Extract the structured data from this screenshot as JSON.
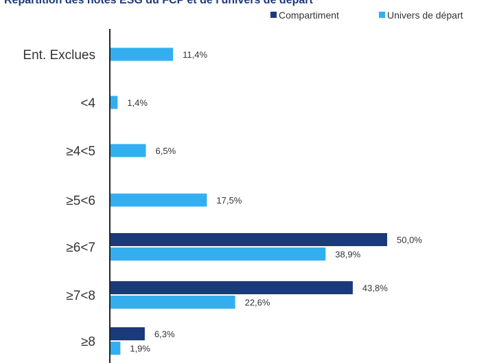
{
  "colors": {
    "compartiment": "#1b3a7a",
    "univers": "#33aff0",
    "axis": "#222222",
    "title": "#1b3a7a",
    "label": "#333333"
  },
  "chart_data": {
    "type": "bar",
    "orientation": "horizontal",
    "title": "Répartition des notes ESG du FCP et de l'univers de départ",
    "categories": [
      "Ent. Exclues",
      "<4",
      "≥4<5",
      "≥5<6",
      "≥6<7",
      "≥7<8",
      "≥8"
    ],
    "series": [
      {
        "name": "Compartiment",
        "values": [
          null,
          null,
          null,
          null,
          50.0,
          43.8,
          6.3
        ],
        "labels": [
          "",
          "",
          "",
          "",
          "50,0%",
          "43,8%",
          "6,3%"
        ]
      },
      {
        "name": "Univers de départ",
        "values": [
          11.4,
          1.4,
          6.5,
          17.5,
          38.9,
          22.6,
          1.9
        ],
        "labels": [
          "11,4%",
          "1,4%",
          "6,5%",
          "17,5%",
          "38,9%",
          "22,6%",
          "1,9%"
        ]
      }
    ],
    "legend_position": "top-right",
    "grid": false
  }
}
